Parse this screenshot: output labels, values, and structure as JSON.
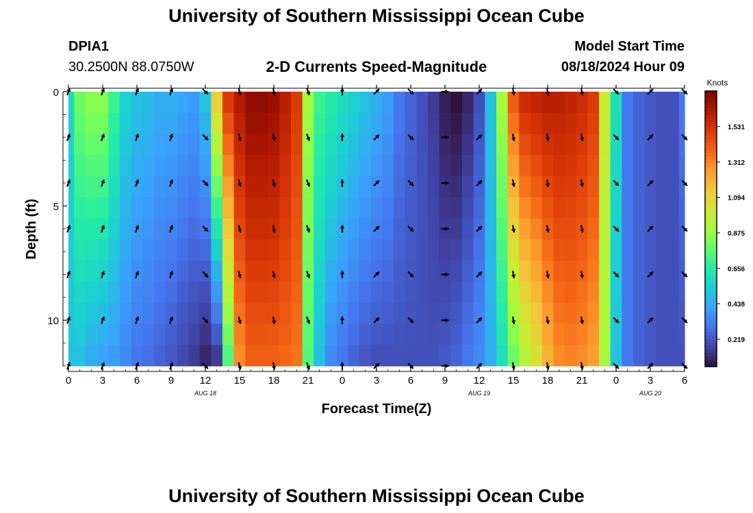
{
  "header": {
    "title": "University of Southern Mississippi Ocean Cube",
    "station": "DPIA1",
    "coords": "30.2500N  88.0750W",
    "product": "2-D Currents Speed-Magnitude",
    "model_label": "Model Start Time",
    "model_time": "08/18/2024 Hour 09"
  },
  "footer": {
    "title": "University of Southern Mississippi Ocean Cube"
  },
  "colors": {
    "ramp": [
      "#30123b",
      "#4145ab",
      "#4675ed",
      "#39a2fc",
      "#1bcfd4",
      "#24eca6",
      "#61fc6c",
      "#a4fc3b",
      "#d1e834",
      "#f3c63a",
      "#fe9b2d",
      "#f36315",
      "#d93806",
      "#b11901",
      "#7a0402"
    ]
  },
  "chart_data": {
    "type": "heatmap",
    "title": "2-D Currents Speed-Magnitude",
    "xlabel": "Forecast Time(Z)",
    "ylabel": "Depth (ft)",
    "xlim": [
      0,
      54
    ],
    "ylim": [
      0,
      12
    ],
    "x_ticks": [
      0,
      3,
      6,
      9,
      12,
      15,
      18,
      21,
      24,
      27,
      30,
      33,
      36,
      39,
      42,
      45,
      48,
      51,
      54
    ],
    "x_tick_labels": [
      "0",
      "3",
      "6",
      "9",
      "12",
      "15",
      "18",
      "21",
      "0",
      "3",
      "6",
      "9",
      "12",
      "15",
      "18",
      "21",
      "0",
      "3",
      "6"
    ],
    "y_ticks": [
      0,
      5,
      10
    ],
    "y_tick_labels": [
      "0",
      "5",
      "10"
    ],
    "date_labels": [
      {
        "x": 12,
        "label": "AUG 18"
      },
      {
        "x": 36,
        "label": "AUG 19"
      },
      {
        "x": 51,
        "label": "AUG 20"
      }
    ],
    "colorbar": {
      "label": "Knots",
      "range": [
        0.05,
        1.75
      ],
      "ticks": [
        1.531,
        1.312,
        1.094,
        0.875,
        0.656,
        0.438,
        0.219
      ],
      "tick_labels": [
        "1.531",
        "1.312",
        "1.094",
        "0.875",
        "0.656",
        "0.438",
        "0.219"
      ]
    },
    "times": [
      0,
      1,
      2,
      3,
      4,
      5,
      6,
      7,
      8,
      9,
      10,
      11,
      12,
      13,
      14,
      15,
      16,
      17,
      18,
      19,
      20,
      21,
      22,
      23,
      24,
      25,
      26,
      27,
      28,
      29,
      30,
      31,
      32,
      33,
      34,
      35,
      36,
      37,
      38,
      39,
      40,
      41,
      42,
      43,
      44,
      45,
      46,
      47,
      48,
      49,
      50,
      51,
      52,
      53,
      54
    ],
    "depths": [
      0,
      1,
      2,
      3,
      4,
      5,
      6,
      7,
      8,
      9,
      10,
      11,
      12
    ],
    "surface_speed": [
      0.56,
      0.8,
      0.85,
      0.85,
      0.7,
      0.55,
      0.5,
      0.48,
      0.45,
      0.45,
      0.42,
      0.4,
      0.5,
      1.1,
      1.5,
      1.62,
      1.7,
      1.7,
      1.68,
      1.6,
      1.5,
      0.9,
      0.7,
      0.65,
      0.6,
      0.55,
      0.5,
      0.45,
      0.4,
      0.3,
      0.25,
      0.2,
      0.15,
      0.08,
      0.05,
      0.1,
      0.2,
      0.5,
      0.9,
      1.4,
      1.55,
      1.58,
      1.6,
      1.6,
      1.58,
      1.55,
      1.5,
      1.0,
      0.6,
      0.3,
      0.25,
      0.22,
      0.2,
      0.2,
      0.3
    ],
    "bottom_speed": [
      0.5,
      0.5,
      0.45,
      0.42,
      0.4,
      0.35,
      0.3,
      0.28,
      0.25,
      0.22,
      0.18,
      0.15,
      0.1,
      0.15,
      0.75,
      1.3,
      1.4,
      1.4,
      1.4,
      1.38,
      1.35,
      0.75,
      0.5,
      0.35,
      0.3,
      0.25,
      0.22,
      0.2,
      0.2,
      0.2,
      0.2,
      0.2,
      0.2,
      0.22,
      0.25,
      0.3,
      0.35,
      0.45,
      0.6,
      0.8,
      0.95,
      1.05,
      1.2,
      1.3,
      1.32,
      1.3,
      1.25,
      0.9,
      0.5,
      0.3,
      0.25,
      0.22,
      0.2,
      0.2,
      0.2
    ],
    "arrow_times": [
      0,
      3,
      6,
      9,
      12,
      15,
      18,
      21,
      24,
      27,
      30,
      33,
      36,
      39,
      42,
      45,
      48,
      51,
      54
    ],
    "arrow_depths": [
      0,
      2,
      4,
      6,
      8,
      10,
      12
    ],
    "arrow_direction_deg": [
      20,
      20,
      20,
      20,
      135,
      165,
      170,
      160,
      0,
      45,
      135,
      90,
      45,
      170,
      170,
      170,
      135,
      45,
      135
    ]
  }
}
